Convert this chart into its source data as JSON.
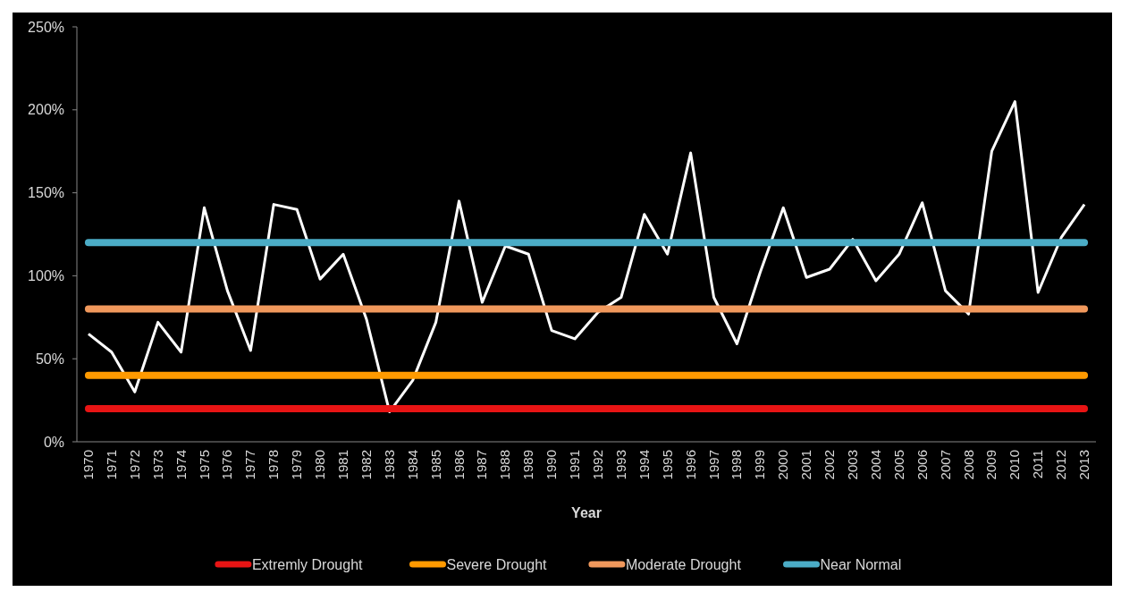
{
  "chart_data": {
    "type": "line",
    "xlabel": "Year",
    "categories": [
      "1970",
      "1971",
      "1972",
      "1973",
      "1974",
      "1975",
      "1976",
      "1977",
      "1978",
      "1979",
      "1980",
      "1981",
      "1982",
      "1983",
      "1984",
      "1985",
      "1986",
      "1987",
      "1988",
      "1989",
      "1990",
      "1991",
      "1992",
      "1993",
      "1994",
      "1995",
      "1996",
      "1997",
      "1998",
      "1999",
      "2000",
      "2001",
      "2002",
      "2003",
      "2004",
      "2005",
      "2006",
      "2007",
      "2008",
      "2009",
      "2010",
      "2011",
      "2012",
      "2013"
    ],
    "series": [
      {
        "color": "#ffffff",
        "values": [
          65,
          54,
          30,
          72,
          54,
          141,
          91,
          55,
          143,
          140,
          98,
          113,
          74,
          18,
          37,
          72,
          145,
          84,
          118,
          113,
          67,
          62,
          78,
          87,
          137,
          113,
          174,
          87,
          59,
          102,
          141,
          99,
          104,
          122,
          97,
          113,
          144,
          91,
          77,
          175,
          205,
          90,
          123,
          143
        ]
      },
      {
        "name": "Extremly Drought",
        "color": "#e81414",
        "values": [
          20,
          20,
          20,
          20,
          20,
          20,
          20,
          20,
          20,
          20,
          20,
          20,
          20,
          20,
          20,
          20,
          20,
          20,
          20,
          20,
          20,
          20,
          20,
          20,
          20,
          20,
          20,
          20,
          20,
          20,
          20,
          20,
          20,
          20,
          20,
          20,
          20,
          20,
          20,
          20,
          20,
          20,
          20,
          20
        ]
      },
      {
        "name": "Severe Drought",
        "color": "#ff9a00",
        "values": [
          40,
          40,
          40,
          40,
          40,
          40,
          40,
          40,
          40,
          40,
          40,
          40,
          40,
          40,
          40,
          40,
          40,
          40,
          40,
          40,
          40,
          40,
          40,
          40,
          40,
          40,
          40,
          40,
          40,
          40,
          40,
          40,
          40,
          40,
          40,
          40,
          40,
          40,
          40,
          40,
          40,
          40,
          40,
          40
        ]
      },
      {
        "name": "Moderate Drought",
        "color": "#f0985c",
        "values": [
          80,
          80,
          80,
          80,
          80,
          80,
          80,
          80,
          80,
          80,
          80,
          80,
          80,
          80,
          80,
          80,
          80,
          80,
          80,
          80,
          80,
          80,
          80,
          80,
          80,
          80,
          80,
          80,
          80,
          80,
          80,
          80,
          80,
          80,
          80,
          80,
          80,
          80,
          80,
          80,
          80,
          80,
          80,
          80
        ]
      },
      {
        "name": "Near Normal",
        "color": "#4bacc6",
        "values": [
          120,
          120,
          120,
          120,
          120,
          120,
          120,
          120,
          120,
          120,
          120,
          120,
          120,
          120,
          120,
          120,
          120,
          120,
          120,
          120,
          120,
          120,
          120,
          120,
          120,
          120,
          120,
          120,
          120,
          120,
          120,
          120,
          120,
          120,
          120,
          120,
          120,
          120,
          120,
          120,
          120,
          120,
          120,
          120
        ]
      }
    ],
    "ylim": [
      0,
      250
    ],
    "yticks": [
      {
        "value": 0,
        "label": "0%"
      },
      {
        "value": 50,
        "label": "50%"
      },
      {
        "value": 100,
        "label": "100%"
      },
      {
        "value": 150,
        "label": "150%"
      },
      {
        "value": 200,
        "label": "200%"
      },
      {
        "value": 250,
        "label": "250%"
      }
    ],
    "legend": "bottom"
  }
}
